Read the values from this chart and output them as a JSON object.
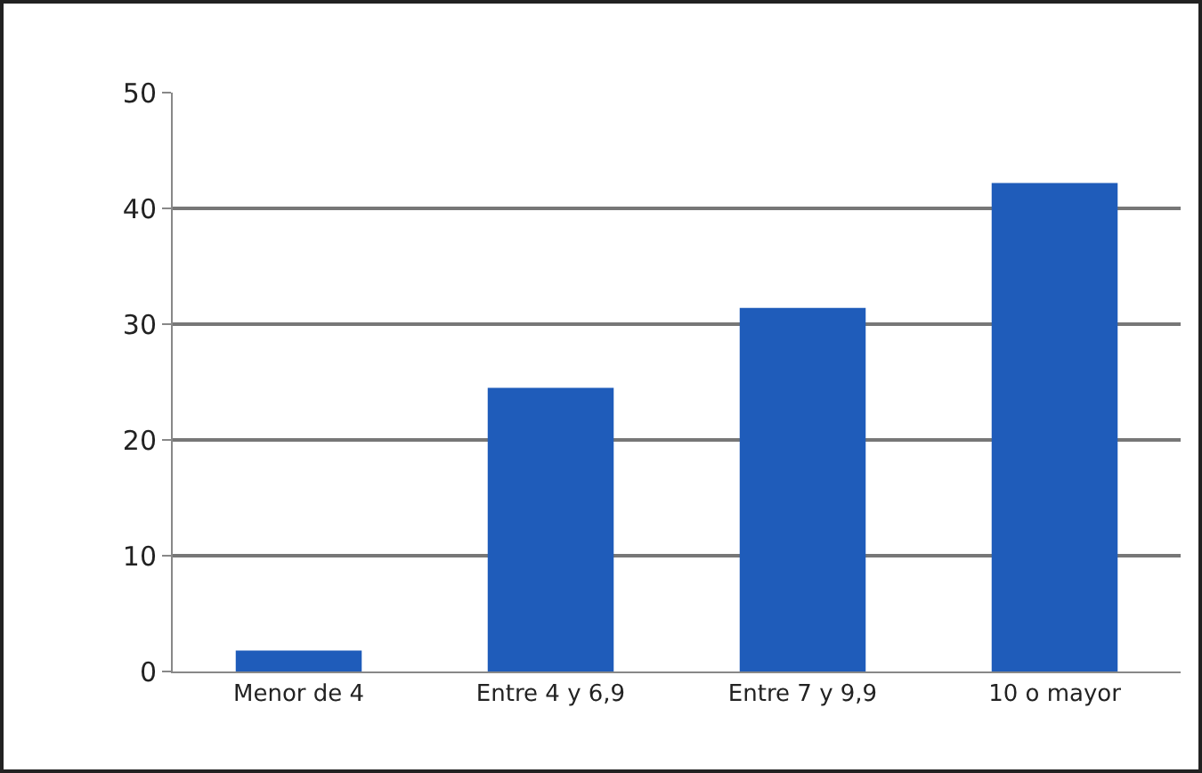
{
  "chart_data": {
    "type": "bar",
    "categories": [
      "Menor de 4",
      "Entre 4 y 6,9",
      "Entre 7 y 9,9",
      "10 o mayor"
    ],
    "values": [
      1.8,
      24.5,
      31.4,
      42.2
    ],
    "color": "#1f5cba",
    "ylim": [
      0,
      50
    ],
    "yticks": [
      0,
      10,
      20,
      30,
      40,
      50
    ],
    "grid": "y"
  }
}
